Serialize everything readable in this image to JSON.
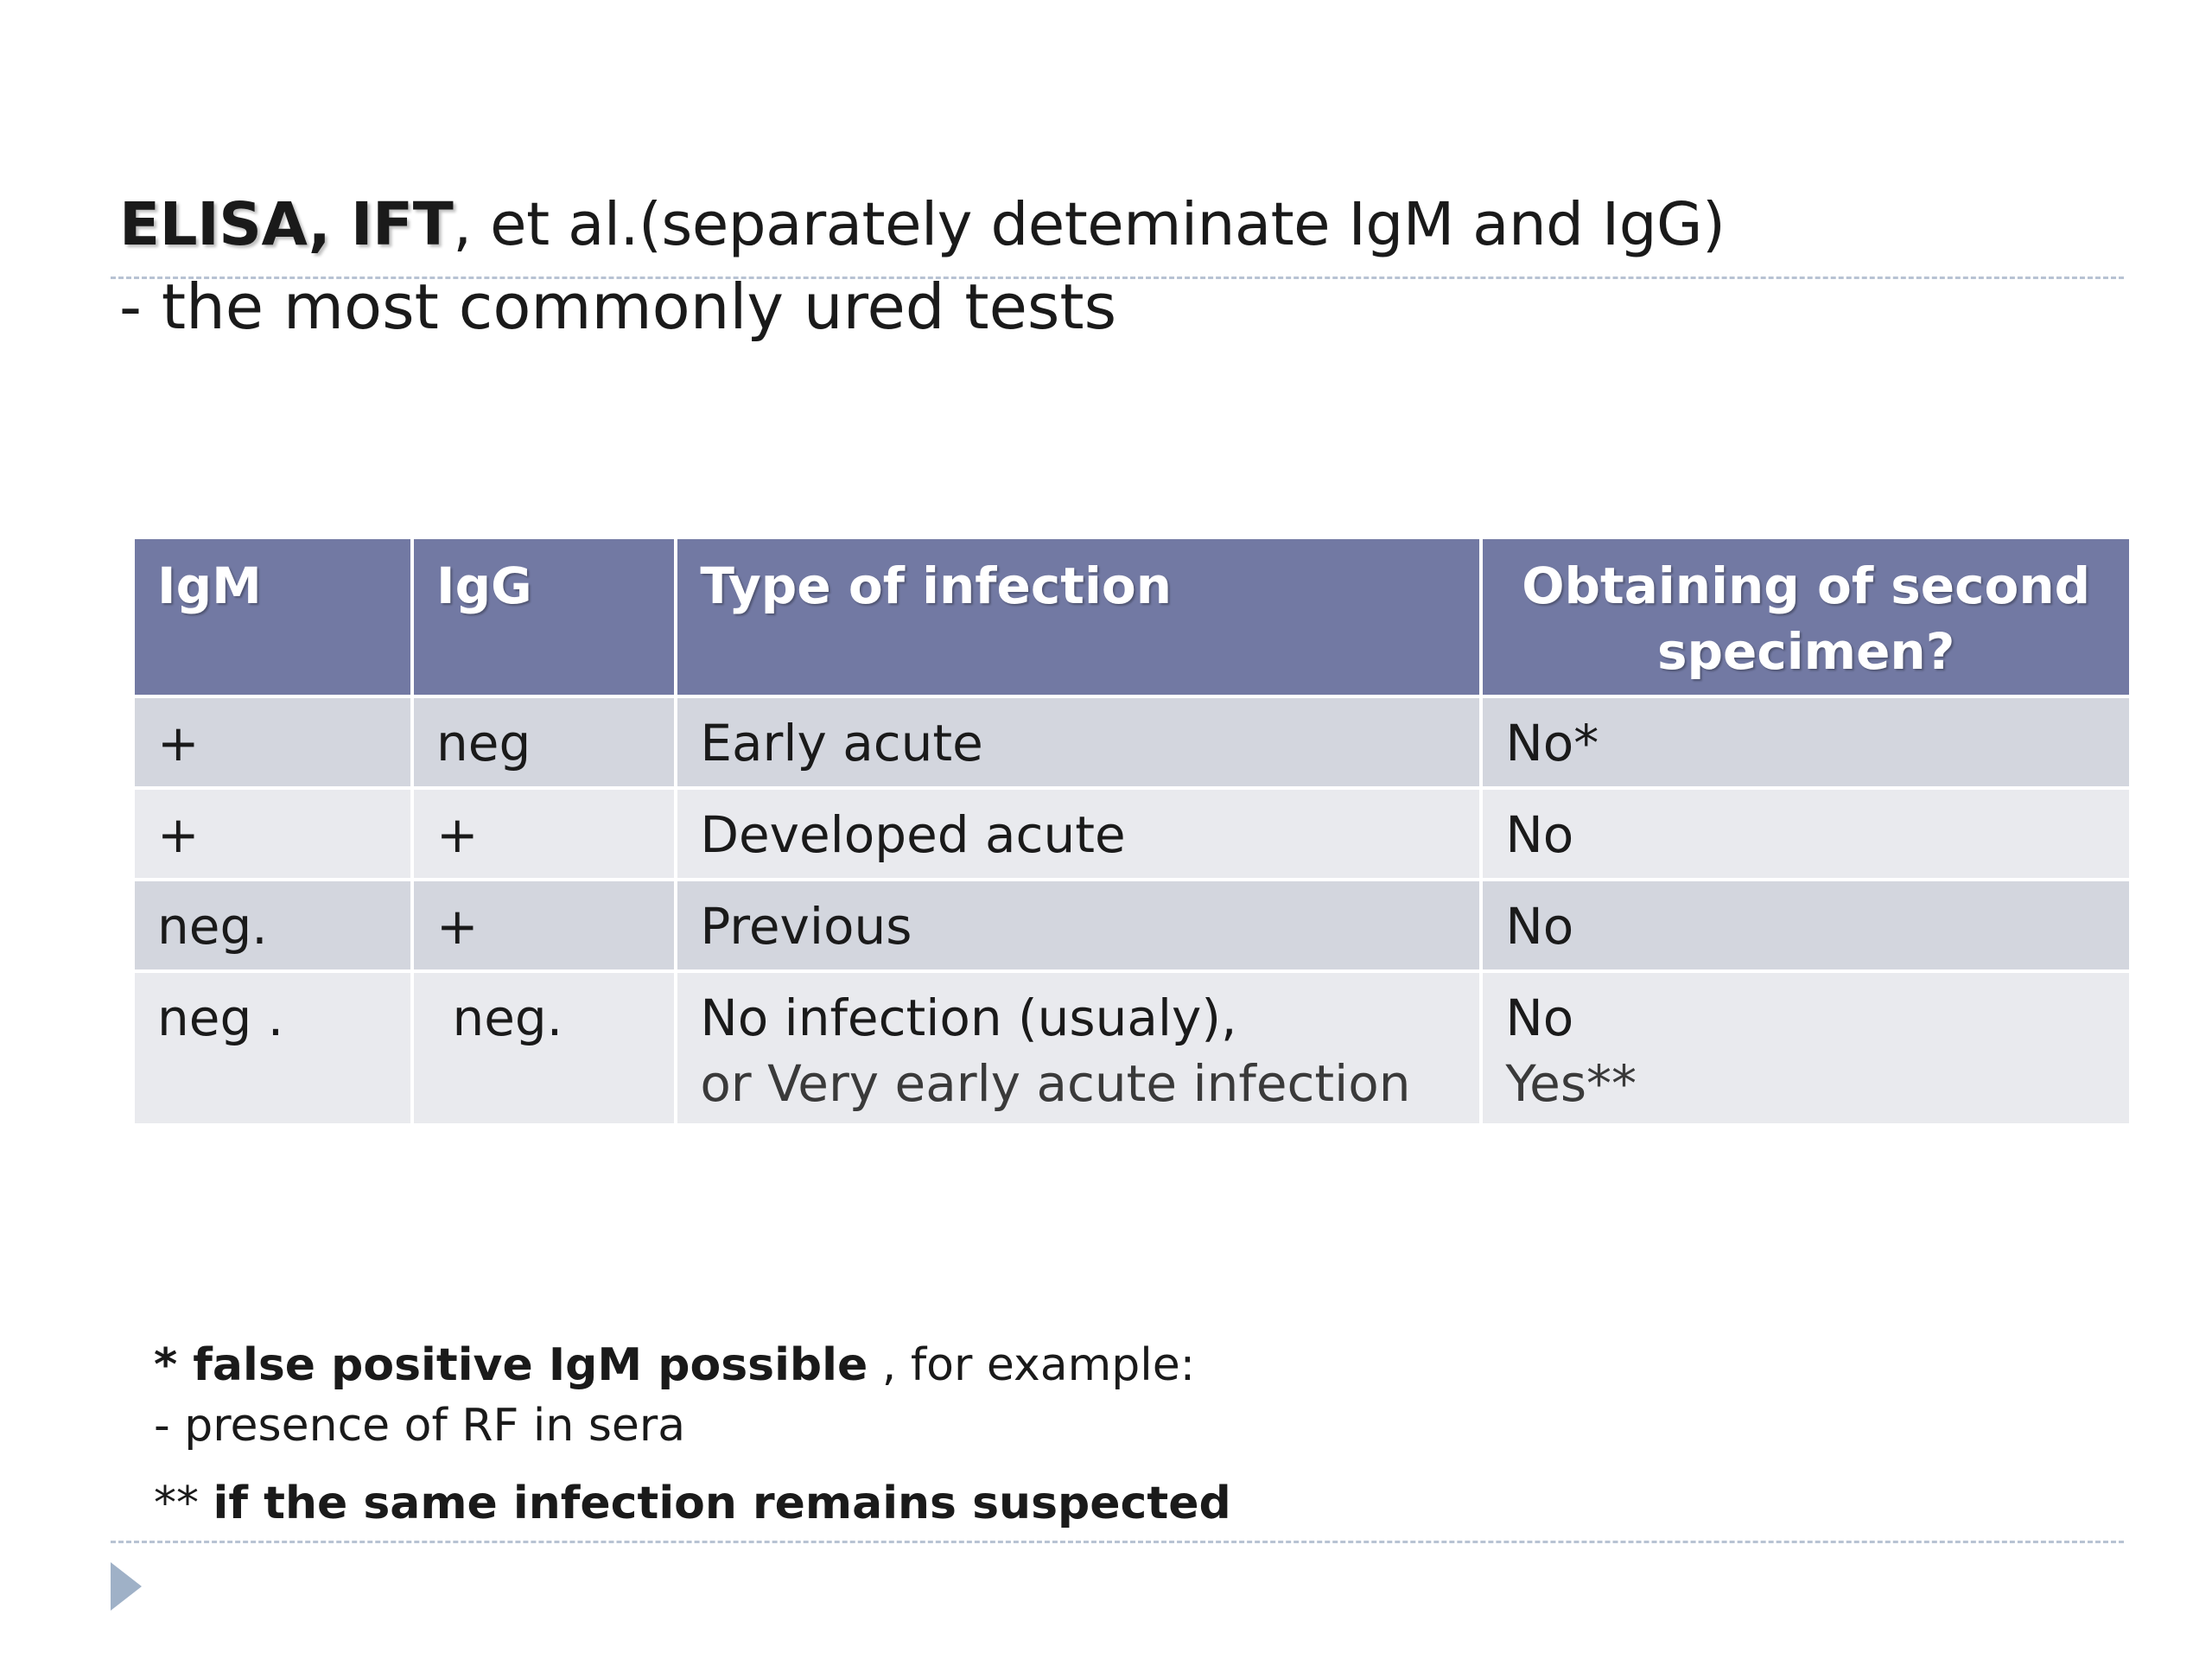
{
  "title": {
    "bold_part": "ELISA, IFT",
    "rest_part": ", et al.(separately deteminate IgM and IgG)",
    "subtitle": "- the most commonly ured tests"
  },
  "table": {
    "headers": [
      "IgM",
      "IgG",
      "Type of infection",
      "Obtaining of second specimen?"
    ],
    "rows": [
      {
        "igm": "+",
        "igg": "neg",
        "type": "Early acute",
        "type2": "",
        "second": "No*",
        "second2": ""
      },
      {
        "igm": "+",
        "igg": "+",
        "type": "Developed acute",
        "type2": "",
        "second": "No",
        "second2": ""
      },
      {
        "igm": "neg.",
        "igg": "+",
        "type": "Previous",
        "type2": "",
        "second": "No",
        "second2": ""
      },
      {
        "igm": "neg .",
        "igg": " neg.",
        "type": "No infection (usualy),",
        "type2": "or Very early acute infection",
        "second": "No",
        "second2": "Yes**"
      }
    ]
  },
  "footnotes": {
    "fn1_bold": "* false positive IgM possible",
    "fn1_rest": " , for example:",
    "fn1_line2": "- presence of  RF in sera",
    "fn2_prefix": "** ",
    "fn2_bold": "if the same infection remains suspected"
  },
  "colors": {
    "header_bg": "#7279a3",
    "row_dark": "#d3d6de",
    "row_light": "#e9eaee",
    "rule": "#b8c3d3",
    "bullet": "#9fb1c7"
  },
  "icons": {
    "slide_bullet": "play-triangle-icon"
  }
}
